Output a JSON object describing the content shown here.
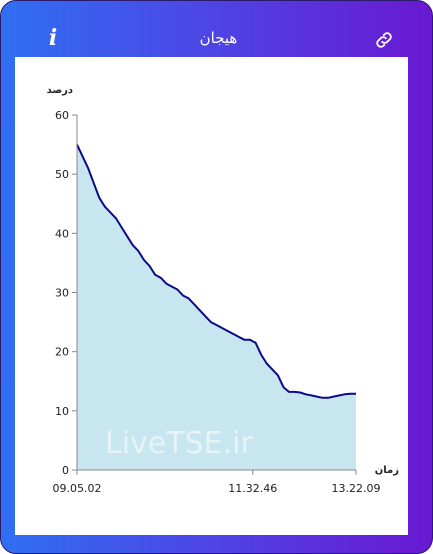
{
  "header": {
    "title": "هیجان",
    "info_label": "i",
    "info_icon": "info-icon",
    "link_icon": "link-icon"
  },
  "colors": {
    "gradient_start": "#2f6ff2",
    "gradient_end": "#6a18d2",
    "line": "#0a0a8a",
    "fill": "#c8e6f0"
  },
  "watermark": "LiveTSE.ir",
  "chart_data": {
    "type": "area",
    "ylabel": "درصد",
    "xlabel": "زمان",
    "ylim": [
      0,
      60
    ],
    "yticks": [
      0,
      10,
      20,
      30,
      40,
      50,
      60
    ],
    "xticks": [
      "09.05.02",
      "11.32.46",
      "13.22.09"
    ],
    "xtick_positions": [
      0,
      0.63,
      1
    ],
    "series": [
      {
        "x": [
          0,
          0.02,
          0.04,
          0.06,
          0.08,
          0.1,
          0.12,
          0.14,
          0.16,
          0.18,
          0.2,
          0.22,
          0.24,
          0.26,
          0.28,
          0.3,
          0.32,
          0.34,
          0.36,
          0.38,
          0.4,
          0.42,
          0.44,
          0.46,
          0.48,
          0.5,
          0.52,
          0.54,
          0.56,
          0.58,
          0.6,
          0.62,
          0.64,
          0.66,
          0.68,
          0.7,
          0.72,
          0.73,
          0.74,
          0.76,
          0.78,
          0.8,
          0.82,
          0.84,
          0.86,
          0.88,
          0.9,
          0.92,
          0.94,
          0.96,
          0.98,
          1.0
        ],
        "values": [
          55,
          53,
          51,
          48.5,
          46,
          44.5,
          43.5,
          42.5,
          41,
          39.5,
          38,
          37,
          35.5,
          34.5,
          33,
          32.5,
          31.5,
          31,
          30.5,
          29.5,
          29,
          28,
          27,
          26,
          25,
          24.5,
          24,
          23.5,
          23,
          22.5,
          22,
          22,
          21.5,
          19.5,
          18,
          17,
          16,
          15,
          14,
          13.2,
          13.2,
          13.1,
          12.8,
          12.6,
          12.4,
          12.2,
          12.2,
          12.4,
          12.6,
          12.8,
          12.9,
          12.9
        ]
      }
    ]
  }
}
